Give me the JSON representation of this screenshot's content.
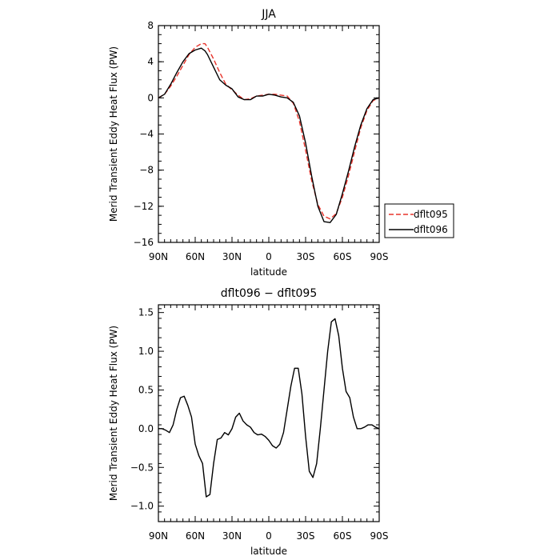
{
  "chart_data": [
    {
      "type": "line",
      "title": "JJA",
      "xlabel": "latitude",
      "ylabel": "Merid Transient Eddy Heat Flux (PW)",
      "xticks": [
        "90N",
        "60N",
        "30N",
        "0",
        "30S",
        "60S",
        "90S"
      ],
      "yticks": [
        "-16",
        "-12",
        "-8",
        "-4",
        "0",
        "4",
        "8"
      ],
      "xlim": [
        90,
        -90
      ],
      "ylim": [
        -16,
        8
      ],
      "legend_position": "right",
      "series": [
        {
          "name": "dflt095",
          "color": "#e8332b",
          "style": "dashed",
          "x": [
            90,
            85,
            80,
            75,
            70,
            65,
            60,
            55,
            52,
            50,
            45,
            40,
            35,
            30,
            25,
            20,
            15,
            10,
            5,
            0,
            -5,
            -10,
            -15,
            -20,
            -25,
            -30,
            -35,
            -40,
            -45,
            -50,
            -55,
            -60,
            -65,
            -70,
            -75,
            -80,
            -85,
            -90
          ],
          "y": [
            0.0,
            0.4,
            1.3,
            2.4,
            3.6,
            4.8,
            5.6,
            6.0,
            6.0,
            5.6,
            4.3,
            2.8,
            1.5,
            0.9,
            0.3,
            -0.2,
            -0.1,
            0.2,
            0.3,
            0.4,
            0.4,
            0.3,
            0.2,
            -0.6,
            -2.6,
            -5.8,
            -9.2,
            -11.8,
            -13.1,
            -13.4,
            -12.8,
            -11.0,
            -8.6,
            -5.9,
            -3.3,
            -1.4,
            -0.3,
            0.0
          ]
        },
        {
          "name": "dflt096",
          "color": "#000000",
          "style": "solid",
          "x": [
            90,
            85,
            80,
            75,
            70,
            65,
            60,
            55,
            52,
            50,
            45,
            40,
            35,
            30,
            25,
            20,
            15,
            10,
            5,
            0,
            -5,
            -10,
            -15,
            -20,
            -25,
            -30,
            -35,
            -40,
            -45,
            -50,
            -55,
            -60,
            -65,
            -70,
            -75,
            -80,
            -85,
            -90
          ],
          "y": [
            0.0,
            0.4,
            1.5,
            2.8,
            4.0,
            4.9,
            5.3,
            5.5,
            5.2,
            4.8,
            3.4,
            2.0,
            1.4,
            1.0,
            0.1,
            -0.2,
            -0.2,
            0.2,
            0.2,
            0.4,
            0.3,
            0.1,
            0.0,
            -0.5,
            -2.0,
            -5.0,
            -8.7,
            -12.0,
            -13.7,
            -13.8,
            -12.9,
            -10.6,
            -8.1,
            -5.4,
            -3.0,
            -1.2,
            -0.2,
            0.0
          ]
        }
      ]
    },
    {
      "type": "line",
      "title": "dflt096 − dflt095",
      "xlabel": "latitude",
      "ylabel": "Merid Transient Eddy Heat Flux (PW)",
      "xticks": [
        "90N",
        "60N",
        "30N",
        "0",
        "30S",
        "60S",
        "90S"
      ],
      "yticks": [
        "-1.0",
        "-0.5",
        "0.0",
        "0.5",
        "1.0",
        "1.5"
      ],
      "xlim": [
        90,
        -90
      ],
      "ylim": [
        -1.2,
        1.6
      ],
      "series": [
        {
          "color": "#000000",
          "style": "solid",
          "x": [
            90,
            87,
            84,
            81,
            78,
            75,
            72,
            69,
            66,
            63,
            60,
            57,
            54,
            51,
            48,
            45,
            42,
            39,
            36,
            33,
            30,
            27,
            24,
            21,
            18,
            15,
            12,
            9,
            6,
            3,
            0,
            -3,
            -6,
            -9,
            -12,
            -15,
            -18,
            -21,
            -24,
            -27,
            -30,
            -33,
            -36,
            -39,
            -42,
            -45,
            -48,
            -51,
            -54,
            -57,
            -60,
            -63,
            -66,
            -69,
            -72,
            -75,
            -78,
            -81,
            -84,
            -87,
            -90
          ],
          "y": [
            0.0,
            0.0,
            -0.02,
            -0.05,
            0.05,
            0.25,
            0.4,
            0.42,
            0.3,
            0.15,
            -0.2,
            -0.35,
            -0.45,
            -0.88,
            -0.85,
            -0.45,
            -0.14,
            -0.12,
            -0.05,
            -0.08,
            0.0,
            0.15,
            0.2,
            0.1,
            0.05,
            0.02,
            -0.05,
            -0.08,
            -0.07,
            -0.1,
            -0.15,
            -0.22,
            -0.25,
            -0.2,
            -0.05,
            0.25,
            0.55,
            0.78,
            0.78,
            0.45,
            -0.1,
            -0.55,
            -0.63,
            -0.45,
            0.0,
            0.5,
            1.0,
            1.38,
            1.42,
            1.2,
            0.78,
            0.48,
            0.4,
            0.15,
            0.0,
            0.0,
            0.02,
            0.05,
            0.05,
            0.02,
            0.0
          ]
        }
      ]
    }
  ]
}
